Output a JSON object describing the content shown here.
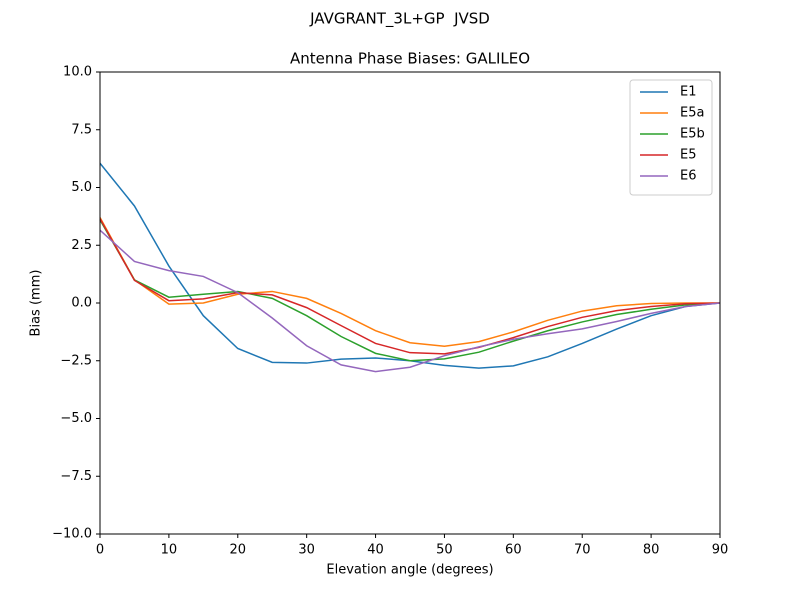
{
  "chart_data": {
    "type": "line",
    "suptitle": "JAVGRANT_3L+GP  JVSD",
    "title": "Antenna Phase Biases: GALILEO",
    "xlabel": "Elevation angle (degrees)",
    "ylabel": "Bias (mm)",
    "x": [
      0,
      5,
      10,
      15,
      20,
      25,
      30,
      35,
      40,
      45,
      50,
      55,
      60,
      65,
      70,
      75,
      80,
      85,
      90
    ],
    "series": [
      {
        "name": "E1",
        "color": "#1f77b4",
        "values": [
          6.05,
          4.2,
          1.6,
          -0.55,
          -1.97,
          -2.57,
          -2.6,
          -2.43,
          -2.38,
          -2.5,
          -2.7,
          -2.82,
          -2.72,
          -2.33,
          -1.75,
          -1.13,
          -0.55,
          -0.15,
          0
        ]
      },
      {
        "name": "E5a",
        "color": "#ff7f0e",
        "values": [
          3.7,
          1.0,
          -0.05,
          0.0,
          0.38,
          0.5,
          0.2,
          -0.45,
          -1.2,
          -1.72,
          -1.87,
          -1.67,
          -1.25,
          -0.75,
          -0.35,
          -0.12,
          -0.02,
          0.0,
          0
        ]
      },
      {
        "name": "E5b",
        "color": "#2ca02c",
        "values": [
          3.6,
          1.0,
          0.25,
          0.38,
          0.5,
          0.2,
          -0.55,
          -1.45,
          -2.18,
          -2.5,
          -2.42,
          -2.13,
          -1.65,
          -1.2,
          -0.82,
          -0.5,
          -0.27,
          -0.08,
          0
        ]
      },
      {
        "name": "E5",
        "color": "#d62728",
        "values": [
          3.65,
          0.98,
          0.1,
          0.18,
          0.45,
          0.35,
          -0.2,
          -0.98,
          -1.75,
          -2.15,
          -2.2,
          -1.92,
          -1.5,
          -1.02,
          -0.62,
          -0.33,
          -0.15,
          -0.03,
          0
        ]
      },
      {
        "name": "E6",
        "color": "#9467bd",
        "values": [
          3.15,
          1.8,
          1.4,
          1.15,
          0.45,
          -0.65,
          -1.85,
          -2.68,
          -2.97,
          -2.78,
          -2.28,
          -1.9,
          -1.57,
          -1.33,
          -1.12,
          -0.8,
          -0.45,
          -0.15,
          0
        ]
      }
    ],
    "xlim": [
      0,
      90
    ],
    "xticks": [
      0,
      10,
      20,
      30,
      40,
      50,
      60,
      70,
      80,
      90
    ],
    "ylim": [
      -10,
      10
    ],
    "yticks": [
      {
        "value": -10,
        "label": "−10.0"
      },
      {
        "value": -7.5,
        "label": "−7.5"
      },
      {
        "value": -5,
        "label": "−5.0"
      },
      {
        "value": -2.5,
        "label": "−2.5"
      },
      {
        "value": 0,
        "label": "0.0"
      },
      2.5,
      {
        "value": 5,
        "label": "5.0"
      },
      7.5,
      {
        "value": 10,
        "label": "10.0"
      }
    ],
    "legend": "upper right"
  }
}
